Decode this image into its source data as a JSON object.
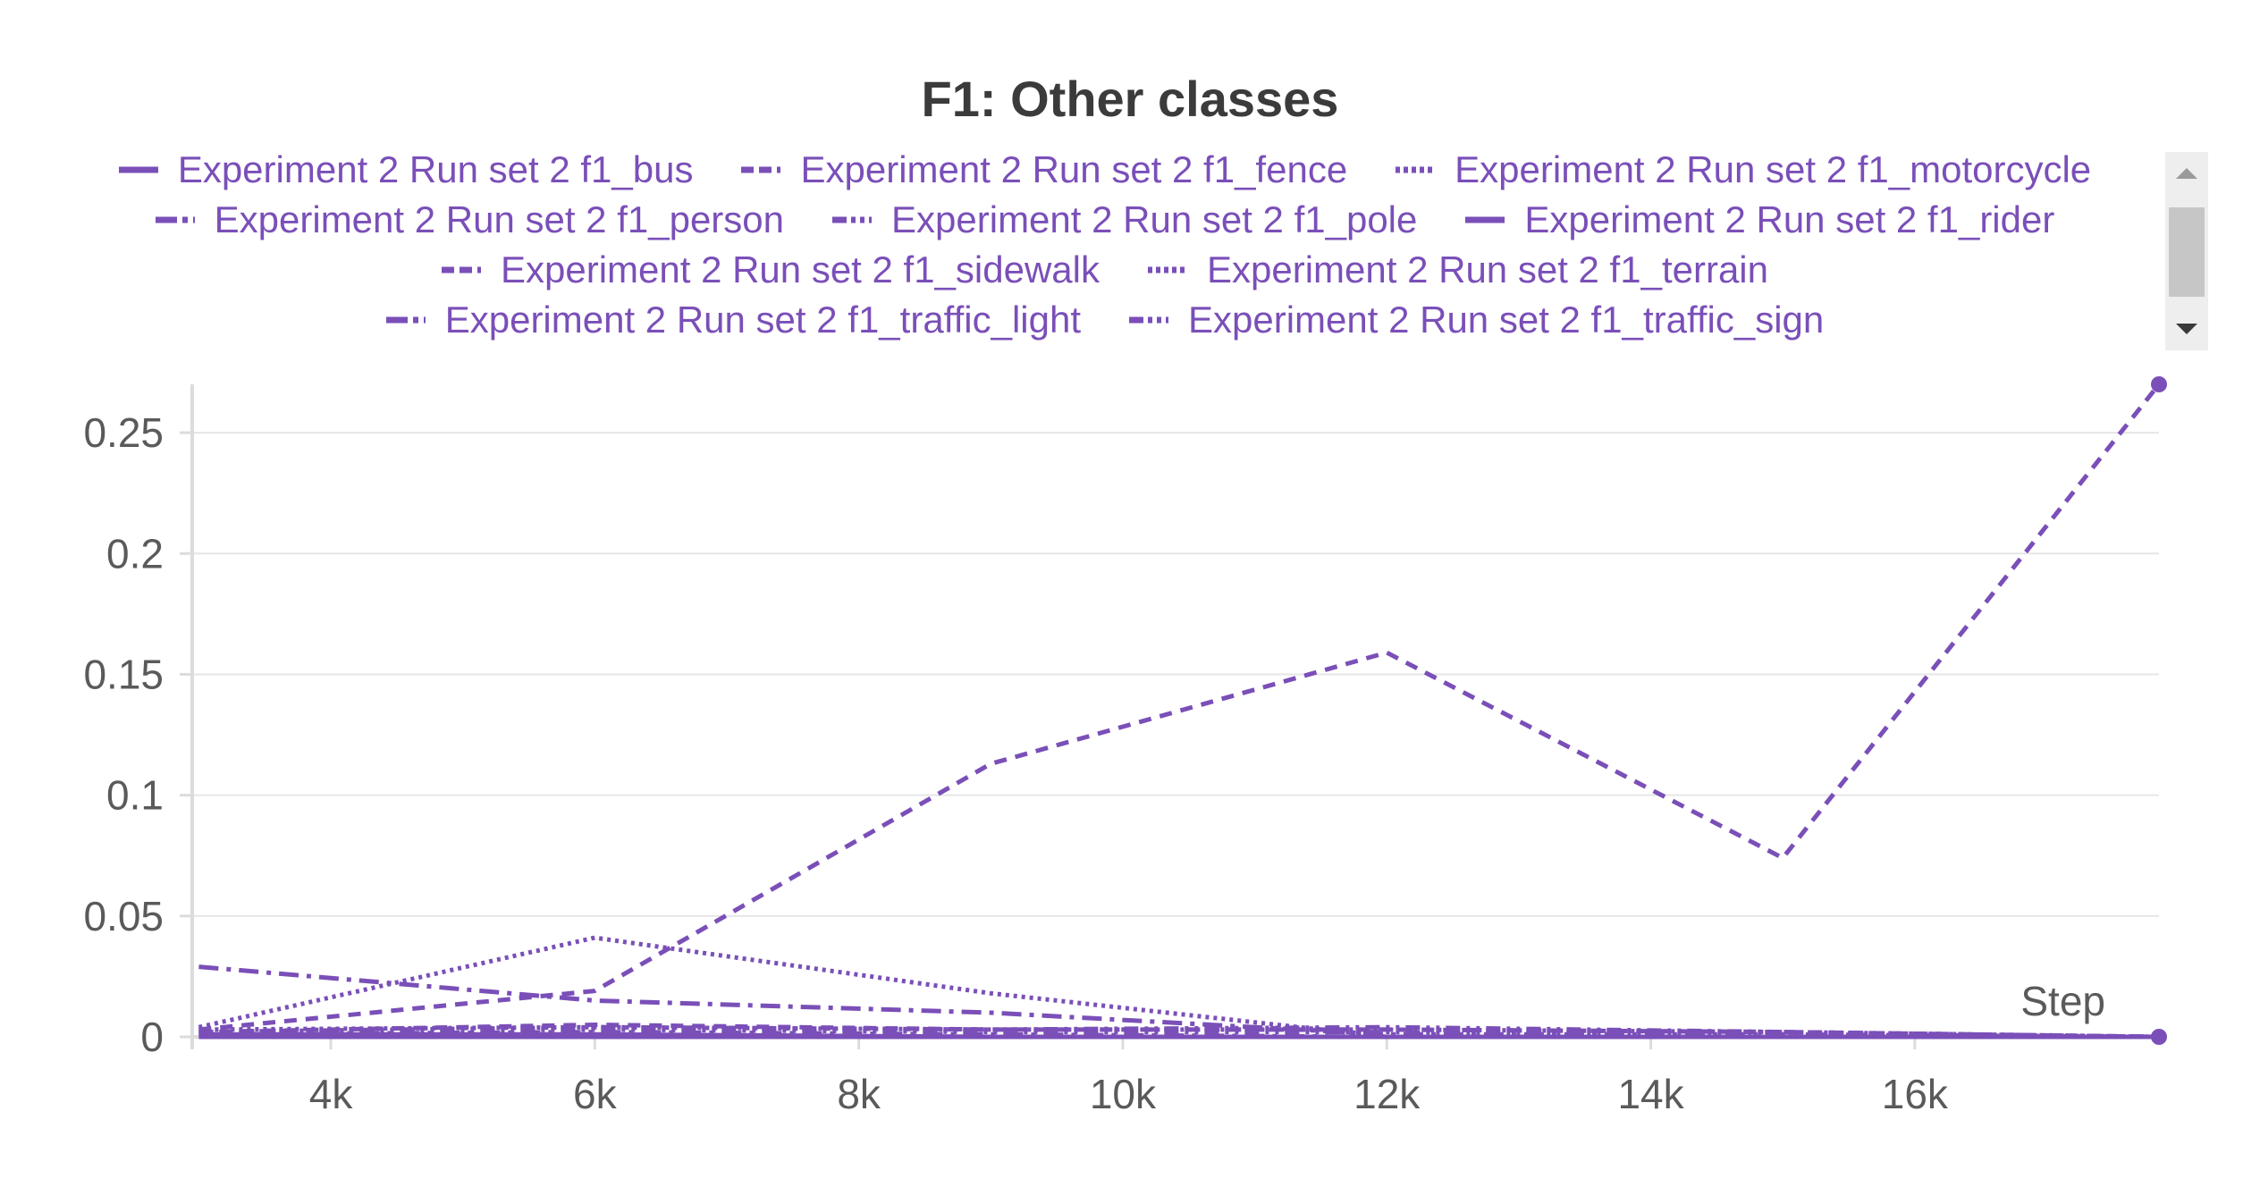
{
  "chart_data": {
    "type": "line",
    "title": "F1: Other classes",
    "xlabel": "Step",
    "ylabel": "",
    "xlim": [
      2950,
      17850
    ],
    "ylim": [
      0,
      0.27
    ],
    "x_ticks": [
      4000,
      6000,
      8000,
      10000,
      12000,
      14000,
      16000
    ],
    "x_tick_labels": [
      "4k",
      "6k",
      "8k",
      "10k",
      "12k",
      "14k",
      "16k"
    ],
    "y_ticks": [
      0,
      0.05,
      0.1,
      0.15,
      0.2,
      0.25
    ],
    "y_tick_labels": [
      "0",
      "0.05",
      "0.1",
      "0.15",
      "0.2",
      "0.25"
    ],
    "grid": true,
    "legend_position": "top",
    "color": "#7a4fb8",
    "series": [
      {
        "name": "Experiment 2 Run set 2 f1_bus",
        "dash": "solid",
        "x": [
          3000,
          6000,
          9000,
          12000,
          15000,
          17850
        ],
        "y": [
          0.001,
          0.001,
          0.0,
          0.0,
          0.0,
          0.0
        ]
      },
      {
        "name": "Experiment 2 Run set 2 f1_fence",
        "dash": "dash",
        "x": [
          3000,
          6000,
          9000,
          12000,
          15000,
          17850
        ],
        "y": [
          0.003,
          0.019,
          0.113,
          0.159,
          0.074,
          0.27
        ]
      },
      {
        "name": "Experiment 2 Run set 2 f1_motorcycle",
        "dash": "dot",
        "x": [
          3000,
          6000,
          9000,
          12000,
          15000,
          17850
        ],
        "y": [
          0.004,
          0.041,
          0.018,
          0.0,
          0.0,
          0.0
        ]
      },
      {
        "name": "Experiment 2 Run set 2 f1_person",
        "dash": "dashdot",
        "x": [
          3000,
          6000,
          9000,
          12000,
          15000,
          17850
        ],
        "y": [
          0.029,
          0.015,
          0.01,
          0.001,
          0.001,
          0.0
        ]
      },
      {
        "name": "Experiment 2 Run set 2 f1_pole",
        "dash": "dashdotdot",
        "x": [
          3000,
          6000,
          9000,
          12000,
          15000,
          17850
        ],
        "y": [
          0.002,
          0.004,
          0.003,
          0.004,
          0.002,
          0.0
        ]
      },
      {
        "name": "Experiment 2 Run set 2 f1_rider",
        "dash": "solid",
        "x": [
          3000,
          6000,
          9000,
          12000,
          15000,
          17850
        ],
        "y": [
          0.0,
          0.0,
          0.0,
          0.0,
          0.0,
          0.0
        ]
      },
      {
        "name": "Experiment 2 Run set 2 f1_sidewalk",
        "dash": "dash",
        "x": [
          3000,
          6000,
          9000,
          12000,
          15000,
          17850
        ],
        "y": [
          0.002,
          0.005,
          0.003,
          0.003,
          0.002,
          0.0
        ]
      },
      {
        "name": "Experiment 2 Run set 2 f1_terrain",
        "dash": "dot",
        "x": [
          3000,
          6000,
          9000,
          12000,
          15000,
          17850
        ],
        "y": [
          0.003,
          0.004,
          0.003,
          0.003,
          0.002,
          0.0
        ]
      },
      {
        "name": "Experiment 2 Run set 2 f1_traffic_light",
        "dash": "dashdot",
        "x": [
          3000,
          6000,
          9000,
          12000,
          15000,
          17850
        ],
        "y": [
          0.001,
          0.002,
          0.001,
          0.0,
          0.0,
          0.0
        ]
      },
      {
        "name": "Experiment 2 Run set 2 f1_traffic_sign",
        "dash": "dashdotdot",
        "x": [
          3000,
          6000,
          9000,
          12000,
          15000,
          17850
        ],
        "y": [
          0.002,
          0.003,
          0.002,
          0.002,
          0.001,
          0.0
        ]
      }
    ]
  }
}
